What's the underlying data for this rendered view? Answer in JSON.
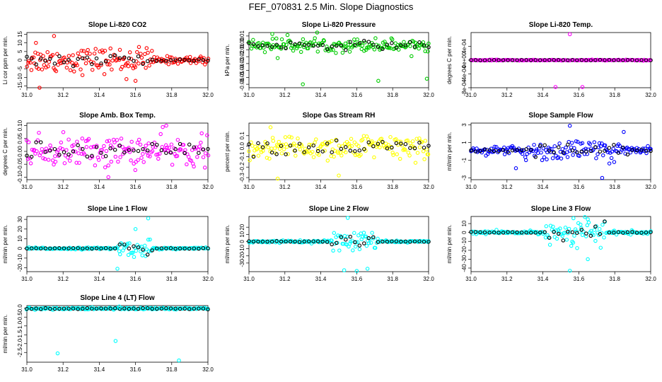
{
  "figure_title": "FEF_070831  2.5 Min. Slope Diagnostics",
  "chart_data": [
    {
      "type": "scatter",
      "title": "Slope Li-820 CO2",
      "ylabel": "Li cor ppm per min.",
      "color": "#ff0000",
      "xlim": [
        31.0,
        32.0
      ],
      "xticks": [
        "31.0",
        "31.2",
        "31.4",
        "31.6",
        "31.8",
        "32.0"
      ],
      "ylim": [
        -16,
        16
      ],
      "yticks": [
        -15,
        -10,
        -5,
        0,
        5,
        10,
        15
      ],
      "core": {
        "x0": 31.0,
        "x1": 32.0,
        "center": 0,
        "spread": 1.8,
        "wide_from": 31.0,
        "wide_to": 31.7,
        "wide_spread": 6,
        "outliers": [
          [
            31.15,
            14
          ],
          [
            31.07,
            -16
          ],
          [
            31.55,
            -11
          ],
          [
            31.6,
            -12
          ],
          [
            31.05,
            10
          ]
        ]
      }
    },
    {
      "type": "scatter",
      "title": "Slope Li-820 Pressure",
      "ylabel": "kPa per min.",
      "color": "#00cc00",
      "xlim": [
        31.0,
        32.0
      ],
      "xticks": [
        "31.0",
        "31.2",
        "31.4",
        "31.6",
        "31.8",
        "32.0"
      ],
      "ylim": [
        -0.065,
        0.015
      ],
      "yticks": [
        0.01,
        0,
        -0.01,
        -0.02,
        -0.03,
        -0.04,
        -0.05,
        -0.06
      ],
      "core": {
        "x0": 31.0,
        "x1": 32.0,
        "center": -0.003,
        "spread": 0.006,
        "wide_from": 31.0,
        "wide_to": 32.0,
        "wide_spread": 0.008,
        "outliers": [
          [
            31.16,
            -0.022
          ],
          [
            31.3,
            -0.06
          ],
          [
            31.72,
            -0.055
          ],
          [
            31.99,
            -0.052
          ],
          [
            31.13,
            0.013
          ]
        ]
      }
    },
    {
      "type": "scatter",
      "title": "Slope Li-820 Temp.",
      "ylabel": "degrees C per min.",
      "color": "#ff00ff",
      "xlim": [
        31.0,
        32.0
      ],
      "xticks": [
        "31.0",
        "31.2",
        "31.4",
        "31.6",
        "31.8",
        "32.0"
      ],
      "ylim": [
        -0.0008,
        0.0008
      ],
      "yticks": [
        "-8e-04",
        "-4e-04",
        "0e+00",
        "4e-04"
      ],
      "core": {
        "x0": 31.0,
        "x1": 32.0,
        "center": 0,
        "spread": 1e-05,
        "wide_from": 31.0,
        "wide_to": 32.0,
        "wide_spread": 1e-05,
        "outliers": [
          [
            31.55,
            0.00075
          ],
          [
            31.47,
            -0.00078
          ],
          [
            31.62,
            -0.00078
          ]
        ]
      }
    },
    {
      "type": "scatter",
      "title": "Slope Amb. Box Temp.",
      "ylabel": "degrees C per min.",
      "color": "#ff00ff",
      "xlim": [
        31.0,
        32.0
      ],
      "xticks": [
        "31.0",
        "31.2",
        "31.4",
        "31.6",
        "31.8",
        "32.0"
      ],
      "ylim": [
        -0.11,
        0.11
      ],
      "yticks": [
        0.1,
        0.05,
        0.0,
        -0.05,
        -0.1
      ],
      "core": {
        "x0": 31.0,
        "x1": 32.0,
        "center": 0,
        "spread": 0.045,
        "wide_from": 31.0,
        "wide_to": 32.0,
        "wide_spread": 0.05,
        "outliers": [
          [
            31.77,
            0.1
          ],
          [
            31.45,
            -0.1
          ]
        ]
      }
    },
    {
      "type": "scatter",
      "title": "Slope Gas Stream RH",
      "ylabel": "percent per min.",
      "color": "#ffff00",
      "xlim": [
        31.0,
        32.0
      ],
      "xticks": [
        "31.0",
        "31.2",
        "31.4",
        "31.6",
        "31.8",
        "32.0"
      ],
      "ylim": [
        -0.32,
        0.22
      ],
      "yticks": [
        0.1,
        0.0,
        -0.1,
        -0.2,
        -0.3
      ],
      "core": {
        "x0": 31.0,
        "x1": 32.0,
        "center": -0.01,
        "spread": 0.08,
        "wide_from": 31.0,
        "wide_to": 32.0,
        "wide_spread": 0.1,
        "outliers": [
          [
            31.16,
            -0.31
          ],
          [
            31.5,
            -0.28
          ],
          [
            31.12,
            0.18
          ]
        ]
      }
    },
    {
      "type": "scatter",
      "title": "Slope Sample Flow",
      "ylabel": "ml/min per min.",
      "color": "#0000ff",
      "xlim": [
        31.0,
        32.0
      ],
      "xticks": [
        "31.0",
        "31.2",
        "31.4",
        "31.6",
        "31.8",
        "32.0"
      ],
      "ylim": [
        -3.2,
        3.2
      ],
      "yticks": [
        3,
        1,
        -1,
        -3
      ],
      "core": {
        "x0": 31.0,
        "x1": 32.0,
        "center": 0.1,
        "spread": 0.35,
        "wide_from": 31.3,
        "wide_to": 31.9,
        "wide_spread": 1.0,
        "outliers": [
          [
            31.55,
            2.9
          ],
          [
            31.73,
            -3.0
          ],
          [
            31.25,
            -1.9
          ],
          [
            31.85,
            2.2
          ]
        ]
      }
    },
    {
      "type": "scatter",
      "title": "Slope Line 1 Flow",
      "ylabel": "ml/min per min.",
      "color": "#00ffff",
      "xlim": [
        31.0,
        32.0
      ],
      "xticks": [
        "31.0",
        "31.2",
        "31.4",
        "31.6",
        "31.8",
        "32.0"
      ],
      "ylim": [
        -24,
        33
      ],
      "yticks": [
        30,
        20,
        10,
        0,
        -10,
        -20
      ],
      "core": {
        "x0": 31.0,
        "x1": 32.0,
        "center": 0,
        "spread": 0.8,
        "wide_from": 31.5,
        "wide_to": 31.7,
        "wide_spread": 7,
        "outliers": [
          [
            31.67,
            31
          ],
          [
            31.5,
            -21
          ],
          [
            31.6,
            20
          ]
        ]
      }
    },
    {
      "type": "scatter",
      "title": "Slope Line 2 Flow",
      "ylabel": "ml/min per min.",
      "color": "#00ffff",
      "xlim": [
        31.0,
        32.0
      ],
      "xticks": [
        "31.0",
        "31.2",
        "31.4",
        "31.6",
        "31.8",
        "32.0"
      ],
      "ylim": [
        -42,
        35
      ],
      "yticks": [
        20,
        10,
        0,
        -10,
        -20,
        -30
      ],
      "core": {
        "x0": 31.0,
        "x1": 32.0,
        "center": 0,
        "spread": 1.2,
        "wide_from": 31.45,
        "wide_to": 31.72,
        "wide_spread": 12,
        "outliers": [
          [
            31.55,
            33
          ],
          [
            31.53,
            -40
          ],
          [
            31.6,
            -41
          ],
          [
            31.66,
            -38
          ]
        ]
      }
    },
    {
      "type": "scatter",
      "title": "Slope Line 3 Flow",
      "ylabel": "ml/min per min.",
      "color": "#00ffff",
      "xlim": [
        31.0,
        32.0
      ],
      "xticks": [
        "31.0",
        "31.2",
        "31.4",
        "31.6",
        "31.8",
        "32.0"
      ],
      "ylim": [
        -44,
        18
      ],
      "yticks": [
        10,
        0,
        -10,
        -20,
        -30,
        -40
      ],
      "core": {
        "x0": 31.0,
        "x1": 32.0,
        "center": 0,
        "spread": 1.5,
        "wide_from": 31.4,
        "wide_to": 31.75,
        "wide_spread": 12,
        "outliers": [
          [
            31.55,
            -43
          ],
          [
            31.57,
            16
          ],
          [
            31.65,
            -30
          ]
        ]
      }
    },
    {
      "type": "scatter",
      "title": "Slope Line 4 (LT) Flow",
      "ylabel": "ml/min per min.",
      "color": "#00ffff",
      "xlim": [
        31.0,
        32.0
      ],
      "xticks": [
        "31.0",
        "31.2",
        "31.4",
        "31.6",
        "31.8",
        "32.0"
      ],
      "ylim": [
        -3.05,
        0.15
      ],
      "yticks": [
        0.0,
        -0.5,
        -1.0,
        -1.5,
        -2.0,
        -2.5
      ],
      "core": {
        "x0": 31.0,
        "x1": 32.0,
        "center": -0.02,
        "spread": 0.05,
        "wide_from": 31.0,
        "wide_to": 32.0,
        "wide_spread": 0.05,
        "outliers": [
          [
            31.17,
            -2.55
          ],
          [
            31.49,
            -1.85
          ],
          [
            31.84,
            -2.95
          ],
          [
            31.51,
            0.1
          ]
        ]
      }
    }
  ]
}
